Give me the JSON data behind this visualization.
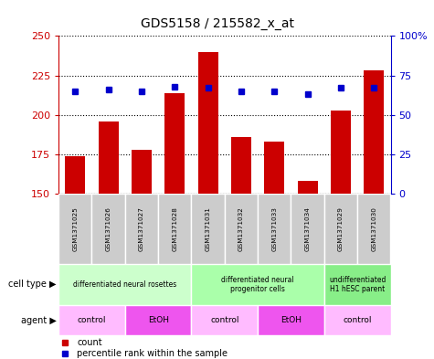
{
  "title": "GDS5158 / 215582_x_at",
  "samples": [
    "GSM1371025",
    "GSM1371026",
    "GSM1371027",
    "GSM1371028",
    "GSM1371031",
    "GSM1371032",
    "GSM1371033",
    "GSM1371034",
    "GSM1371029",
    "GSM1371030"
  ],
  "counts": [
    174,
    196,
    178,
    214,
    240,
    186,
    183,
    158,
    203,
    228
  ],
  "percentiles": [
    65,
    66,
    65,
    68,
    67,
    65,
    65,
    63,
    67,
    67
  ],
  "ymin": 150,
  "ymax": 250,
  "yticks": [
    150,
    175,
    200,
    225,
    250
  ],
  "y2min": 0,
  "y2max": 100,
  "y2ticks": [
    0,
    25,
    50,
    75,
    100
  ],
  "y2ticklabels": [
    "0",
    "25",
    "50",
    "75",
    "100%"
  ],
  "cell_type_groups": [
    {
      "label": "differentiated neural rosettes",
      "start": 0,
      "end": 4,
      "color": "#ccffcc"
    },
    {
      "label": "differentiated neural\nprogenitor cells",
      "start": 4,
      "end": 8,
      "color": "#aaffaa"
    },
    {
      "label": "undifferentiated\nH1 hESC parent",
      "start": 8,
      "end": 10,
      "color": "#88ee88"
    }
  ],
  "agent_groups": [
    {
      "label": "control",
      "start": 0,
      "end": 2,
      "color": "#ffbbff"
    },
    {
      "label": "EtOH",
      "start": 2,
      "end": 4,
      "color": "#ee55ee"
    },
    {
      "label": "control",
      "start": 4,
      "end": 6,
      "color": "#ffbbff"
    },
    {
      "label": "EtOH",
      "start": 6,
      "end": 8,
      "color": "#ee55ee"
    },
    {
      "label": "control",
      "start": 8,
      "end": 10,
      "color": "#ffbbff"
    }
  ],
  "bar_color": "#cc0000",
  "dot_color": "#0000cc",
  "background_color": "#ffffff",
  "label_color_left": "#cc0000",
  "label_color_right": "#0000cc",
  "sample_box_color": "#cccccc",
  "legend_items": [
    {
      "label": "count",
      "color": "#cc0000"
    },
    {
      "label": "percentile rank within the sample",
      "color": "#0000cc"
    }
  ],
  "fig_width": 4.75,
  "fig_height": 3.93,
  "dpi": 100
}
